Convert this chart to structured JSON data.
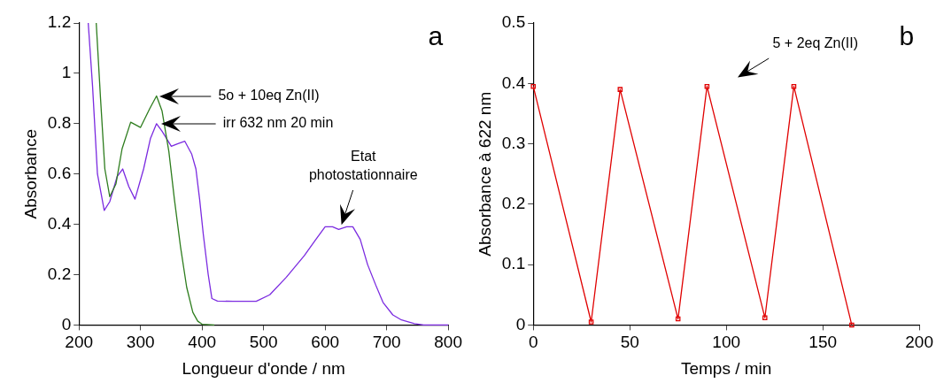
{
  "chart_data": [
    {
      "type": "line",
      "xlabel": "Longueur d'onde / nm",
      "ylabel": "Absorbance",
      "xlim": [
        200,
        800
      ],
      "xticks": [
        200,
        300,
        400,
        500,
        600,
        700,
        800
      ],
      "ylim": [
        0,
        1.2
      ],
      "yticks": [
        0,
        0.2,
        0.4,
        0.6,
        0.8,
        1,
        1.2
      ],
      "grid": false,
      "legend": false,
      "marker": "none",
      "line_style": "solid",
      "series": [
        {
          "color": "#2e7d1e",
          "x": [
            228,
            235,
            242,
            250,
            260,
            270,
            284,
            300,
            315,
            326,
            335,
            346,
            355,
            365,
            375,
            385,
            393,
            400,
            420
          ],
          "values": [
            1.2,
            0.9,
            0.62,
            0.51,
            0.56,
            0.7,
            0.806,
            0.785,
            0.86,
            0.91,
            0.85,
            0.69,
            0.5,
            0.31,
            0.15,
            0.05,
            0.015,
            0.003,
            0
          ]
        },
        {
          "color": "#7b2be0",
          "x": [
            215,
            222,
            230,
            241,
            250,
            262,
            271,
            281,
            291,
            305,
            316,
            326,
            335,
            350,
            360,
            372,
            383,
            390,
            396,
            402,
            410,
            416,
            425,
            450,
            488,
            510,
            537,
            566,
            585,
            600,
            612,
            622,
            635,
            645,
            657,
            669,
            682,
            694,
            710,
            724,
            745,
            760,
            800
          ],
          "values": [
            1.2,
            0.95,
            0.6,
            0.455,
            0.49,
            0.59,
            0.62,
            0.55,
            0.5,
            0.62,
            0.74,
            0.8,
            0.77,
            0.71,
            0.72,
            0.73,
            0.68,
            0.62,
            0.5,
            0.36,
            0.2,
            0.105,
            0.095,
            0.094,
            0.094,
            0.12,
            0.19,
            0.275,
            0.34,
            0.39,
            0.39,
            0.38,
            0.39,
            0.39,
            0.34,
            0.24,
            0.16,
            0.09,
            0.04,
            0.02,
            0.005,
            0,
            0
          ]
        }
      ],
      "annotations": [
        "5o + 10eq Zn(II)",
        "irr 632 nm 20 min",
        "Etat photostationnaire",
        "a"
      ]
    },
    {
      "type": "line",
      "xlabel": "Temps / min",
      "ylabel": "Absorbance à 622 nm",
      "xlim": [
        0,
        200
      ],
      "xticks": [
        0,
        50,
        100,
        150,
        200
      ],
      "ylim": [
        0,
        0.5
      ],
      "yticks": [
        0,
        0.1,
        0.2,
        0.3,
        0.4,
        0.5
      ],
      "grid": false,
      "legend": false,
      "marker": "square",
      "line_style": "solid",
      "series": [
        {
          "color": "#e00000",
          "x": [
            0,
            30,
            45,
            75,
            90,
            120,
            135,
            165
          ],
          "values": [
            0.395,
            0.005,
            0.39,
            0.01,
            0.395,
            0.012,
            0.395,
            0
          ]
        }
      ],
      "annotations": [
        "5 + 2eq Zn(II)",
        "b"
      ]
    }
  ]
}
